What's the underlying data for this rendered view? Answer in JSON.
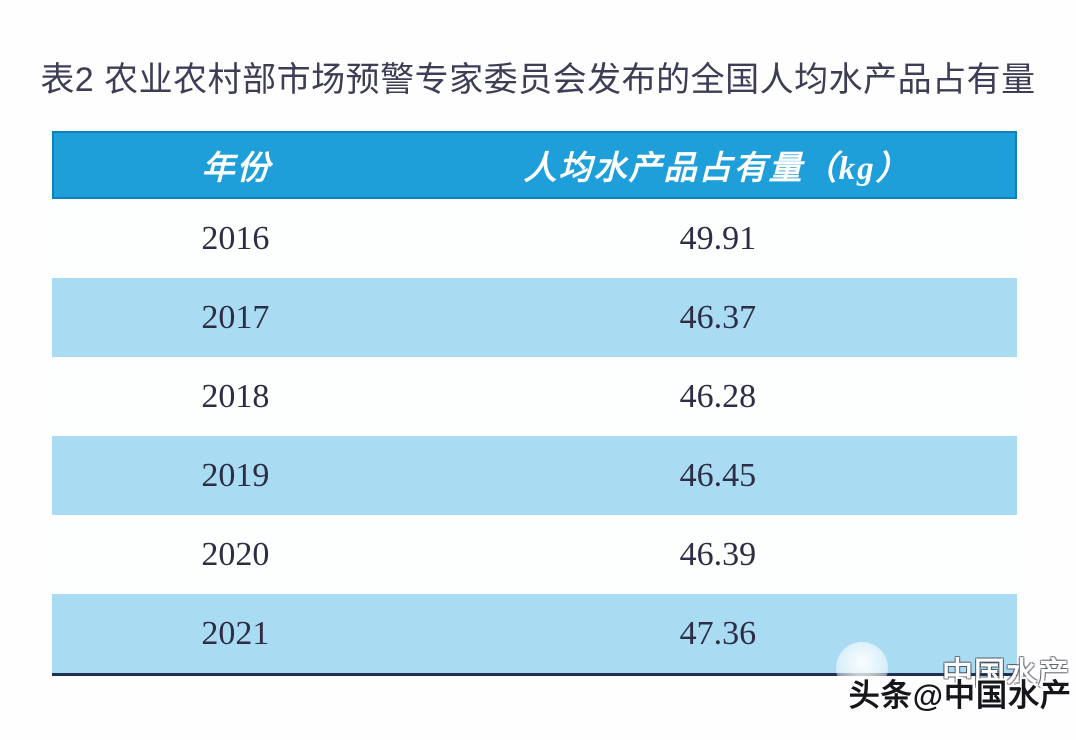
{
  "title": "表2 农业农村部市场预警专家委员会发布的全国人均水产品占有量",
  "table": {
    "columns": [
      "年份",
      "人均水产品占有量（kg）"
    ],
    "rows": [
      {
        "year": "2016",
        "value": "49.91"
      },
      {
        "year": "2017",
        "value": "46.37"
      },
      {
        "year": "2018",
        "value": "46.28"
      },
      {
        "year": "2019",
        "value": "46.45"
      },
      {
        "year": "2020",
        "value": "46.39"
      },
      {
        "year": "2021",
        "value": "47.36"
      }
    ]
  },
  "chart_data": {
    "type": "table",
    "title": "表2 农业农村部市场预警专家委员会发布的全国人均水产品占有量",
    "categories": [
      "2016",
      "2017",
      "2018",
      "2019",
      "2020",
      "2021"
    ],
    "values": [
      49.91,
      46.37,
      46.28,
      46.45,
      46.39,
      47.36
    ],
    "xlabel": "年份",
    "ylabel": "人均水产品占有量（kg）"
  },
  "watermark": {
    "text": "头条@中国水产",
    "ghost": "中国水产"
  },
  "colors": {
    "header_bg": "#1f9fda",
    "header_border": "#0e81bb",
    "row_alt": "#a9dbf3",
    "bottom_rule": "#203052",
    "title_color": "#3d3d55",
    "data_color": "#2d2d46"
  }
}
